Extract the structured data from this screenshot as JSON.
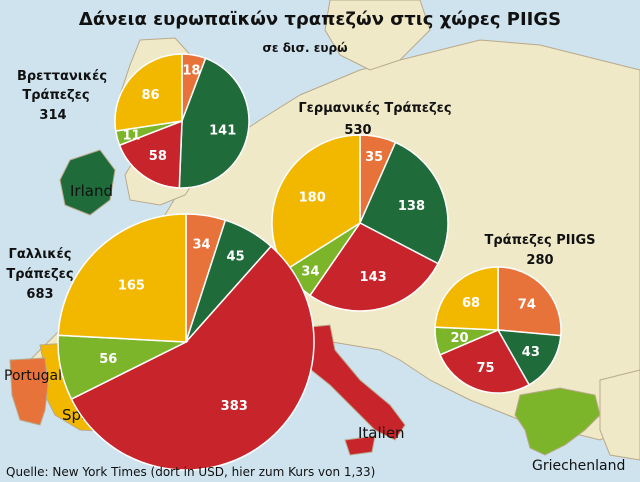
{
  "title": "Δάνεια ευρωπαϊκών τραπεζών στις χώρες PIIGS",
  "subtitle": "σε δισ. ευρώ",
  "source": "Quelle: New York Times (dort in USD, hier zum Kurs von 1,33)",
  "map_labels": {
    "irland": "Irland",
    "portugal": "Portugal",
    "spanien": "Spanien",
    "italien": "Italien",
    "griechenland": "Griechenland"
  },
  "colors": {
    "sea": "#cfe3ee",
    "land": "#efe9c8",
    "border": "#b9a98a",
    "orange": "#e8733a",
    "green_dark": "#1f6b3a",
    "red": "#c8242b",
    "green_light": "#7cb52a",
    "yellow": "#f2b800",
    "spain": "#f2b800",
    "portugal": "#e8733a",
    "italy": "#c8242b",
    "greece": "#7cb52a",
    "ireland": "#1f6b3a"
  },
  "chart_data": [
    {
      "type": "pie",
      "name": "Βρεττανικές Τράπεζες",
      "label_lines": [
        "Βρεττανικές",
        "Τράπεζες"
      ],
      "total": "314",
      "slices": [
        {
          "value": 18,
          "color": "orange"
        },
        {
          "value": 141,
          "color": "green_dark"
        },
        {
          "value": 58,
          "color": "red"
        },
        {
          "value": 11,
          "color": "green_light"
        },
        {
          "value": 86,
          "color": "yellow"
        }
      ]
    },
    {
      "type": "pie",
      "name": "Γερμανικές Τράπεζες",
      "label_lines": [
        "Γερμανικές Τράπεζες"
      ],
      "total": "530",
      "slices": [
        {
          "value": 35,
          "color": "orange"
        },
        {
          "value": 138,
          "color": "green_dark"
        },
        {
          "value": 143,
          "color": "red"
        },
        {
          "value": 34,
          "color": "green_light"
        },
        {
          "value": 180,
          "color": "yellow"
        }
      ]
    },
    {
      "type": "pie",
      "name": "Γαλλικές Τράπεζες",
      "label_lines": [
        "Γαλλικές",
        "Τράπεζες"
      ],
      "total": "683",
      "slices": [
        {
          "value": 34,
          "color": "orange"
        },
        {
          "value": 45,
          "color": "green_dark"
        },
        {
          "value": 383,
          "color": "red"
        },
        {
          "value": 56,
          "color": "green_light"
        },
        {
          "value": 165,
          "color": "yellow"
        }
      ]
    },
    {
      "type": "pie",
      "name": "Τράπεζες PIIGS",
      "label_lines": [
        "Τράπεζες PIIGS"
      ],
      "total": "280",
      "slices": [
        {
          "value": 74,
          "color": "orange"
        },
        {
          "value": 43,
          "color": "green_dark"
        },
        {
          "value": 75,
          "color": "red"
        },
        {
          "value": 20,
          "color": "green_light"
        },
        {
          "value": 68,
          "color": "yellow"
        }
      ]
    }
  ]
}
